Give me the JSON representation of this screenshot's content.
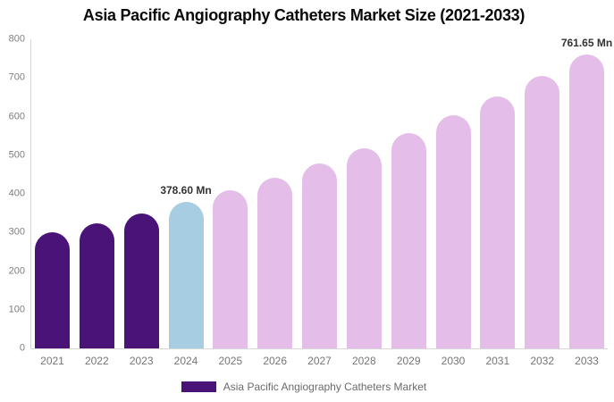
{
  "chart_data": {
    "type": "bar",
    "title": "Asia Pacific Angiography Catheters Market Size (2021-2033)",
    "categories": [
      "2021",
      "2022",
      "2023",
      "2024",
      "2025",
      "2026",
      "2027",
      "2028",
      "2029",
      "2030",
      "2031",
      "2032",
      "2033"
    ],
    "series": [
      {
        "name": "Asia Pacific Angiography Catheters Market",
        "values": [
          300,
          324,
          350,
          378.6,
          409,
          442,
          478,
          517,
          558,
          604,
          652,
          705,
          761.65
        ]
      }
    ],
    "bar_colors": [
      "#4a1377",
      "#4a1377",
      "#4a1377",
      "#a6cde2",
      "#e5bde9",
      "#e5bde9",
      "#e5bde9",
      "#e5bde9",
      "#e5bde9",
      "#e5bde9",
      "#e5bde9",
      "#e5bde9",
      "#e5bde9"
    ],
    "annotations": [
      {
        "category": "2024",
        "text": "378.60 Mn"
      },
      {
        "category": "2033",
        "text": "761.65 Mn"
      }
    ],
    "xlabel": "",
    "ylabel": "",
    "ylim": [
      0,
      800
    ],
    "yticks": [
      0,
      100,
      200,
      300,
      400,
      500,
      600,
      700,
      800
    ],
    "grid": false,
    "legend_position": "bottom"
  },
  "legend": {
    "label": "Asia Pacific Angiography Catheters Market",
    "swatch_color": "#4a1377"
  },
  "colors": {
    "historical_bar": "#4a1377",
    "base_year_bar": "#a6cde2",
    "forecast_bar": "#e5bde9",
    "axis_line": "#d7d7d7",
    "tick_text": "#7e7e7e",
    "title_text": "#0a0a0a"
  }
}
